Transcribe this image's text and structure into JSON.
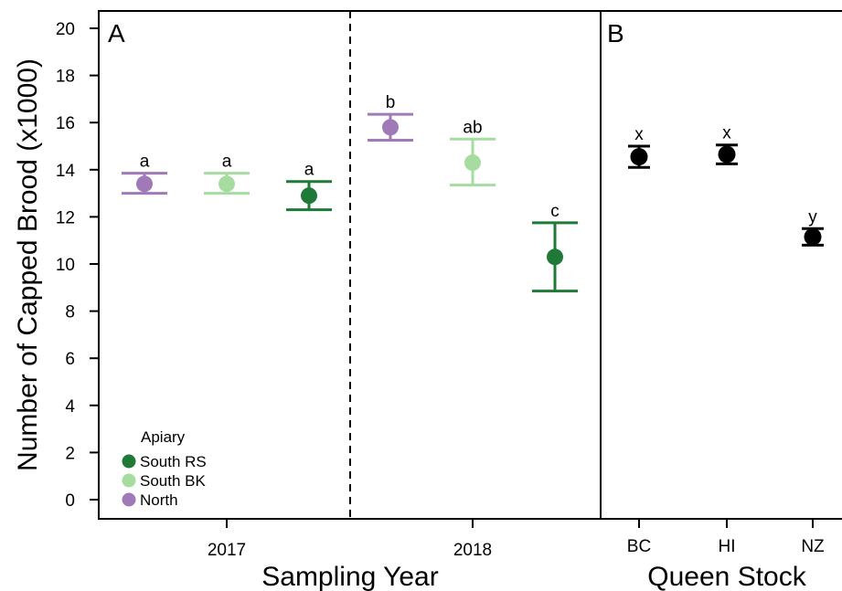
{
  "colors": {
    "south_rs": "#1e7a36",
    "south_bk": "#a6dca0",
    "north": "#a07ab8",
    "black": "#000000"
  },
  "chart_data": [
    {
      "panel": "A",
      "type": "scatter",
      "ylabel": "Number of Capped Brood (x1000)",
      "xlabel": "Sampling Year",
      "ylim": [
        0,
        20
      ],
      "yticks": [
        0,
        2,
        4,
        6,
        8,
        10,
        12,
        14,
        16,
        18,
        20
      ],
      "categories": [
        "2017",
        "2018"
      ],
      "legend": {
        "title": "Apiary",
        "placement": "bottom-left",
        "entries": [
          "South RS",
          "South BK",
          "North"
        ]
      },
      "series": [
        {
          "name": "North",
          "color_key": "north",
          "points": [
            {
              "x": "2017",
              "y": 13.4,
              "lower": 13.0,
              "upper": 13.85,
              "label": "a"
            },
            {
              "x": "2018",
              "y": 15.8,
              "lower": 15.25,
              "upper": 16.35,
              "label": "b"
            }
          ]
        },
        {
          "name": "South BK",
          "color_key": "south_bk",
          "points": [
            {
              "x": "2017",
              "y": 13.4,
              "lower": 13.0,
              "upper": 13.85,
              "label": "a"
            },
            {
              "x": "2018",
              "y": 14.3,
              "lower": 13.35,
              "upper": 15.3,
              "label": "ab"
            }
          ]
        },
        {
          "name": "South RS",
          "color_key": "south_rs",
          "points": [
            {
              "x": "2017",
              "y": 12.9,
              "lower": 12.3,
              "upper": 13.5,
              "label": "a"
            },
            {
              "x": "2018",
              "y": 10.3,
              "lower": 8.85,
              "upper": 11.75,
              "label": "c"
            }
          ]
        }
      ]
    },
    {
      "panel": "B",
      "type": "scatter",
      "xlabel": "Queen Stock",
      "ylim": [
        0,
        20
      ],
      "categories": [
        "BC",
        "HI",
        "NZ"
      ],
      "points": [
        {
          "x": "BC",
          "y": 14.55,
          "lower": 14.1,
          "upper": 15.0,
          "label": "x"
        },
        {
          "x": "HI",
          "y": 14.65,
          "lower": 14.25,
          "upper": 15.05,
          "label": "x"
        },
        {
          "x": "NZ",
          "y": 11.15,
          "lower": 10.8,
          "upper": 11.5,
          "label": "y"
        }
      ]
    }
  ]
}
